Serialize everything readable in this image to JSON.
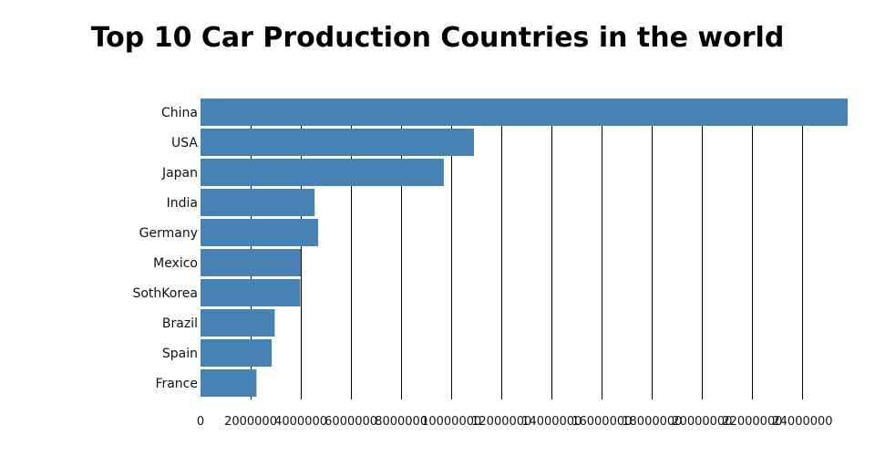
{
  "chart_data": {
    "type": "bar",
    "orientation": "horizontal",
    "title": "Top 10 Car Production Countries in the world",
    "xlabel": "",
    "ylabel": "",
    "categories": [
      "China",
      "USA",
      "Japan",
      "India",
      "Germany",
      "Mexico",
      "SothKorea",
      "Brazil",
      "Spain",
      "France"
    ],
    "values": [
      25800000,
      10900000,
      9700000,
      4550000,
      4690000,
      4000000,
      3980000,
      2960000,
      2840000,
      2230000
    ],
    "xlim": [
      0,
      25800000
    ],
    "xticks": [
      0,
      2000000,
      4000000,
      6000000,
      8000000,
      10000000,
      12000000,
      14000000,
      16000000,
      18000000,
      20000000,
      22000000,
      24000000
    ],
    "grid": "vertical",
    "bar_color": "#4682b4",
    "grid_color": "#000000"
  }
}
